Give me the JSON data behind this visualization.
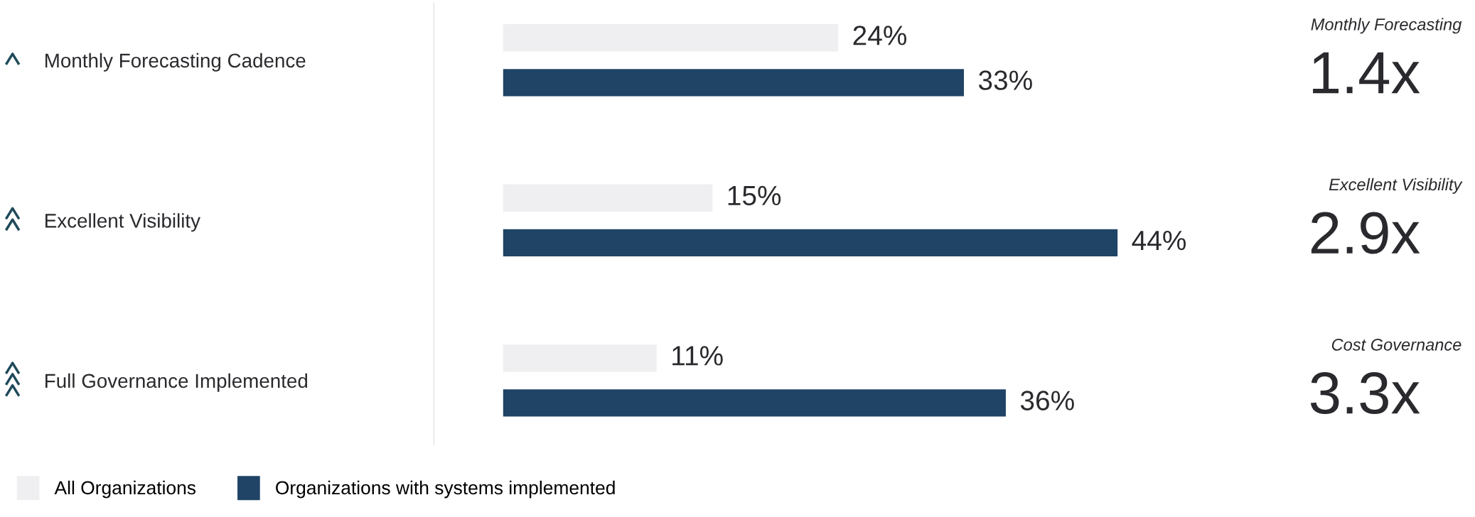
{
  "chart_data": {
    "type": "bar",
    "orientation": "horizontal",
    "relative": false,
    "categories": [
      "Monthly Forecasting Cadence",
      "Excellent Visibility",
      "Full Governance Implemented"
    ],
    "series": [
      {
        "name": "All Organizations",
        "color": "#efeef0",
        "values": [
          24,
          15,
          11
        ],
        "value_labels": [
          "24%",
          "15%",
          "11%"
        ]
      },
      {
        "name": "Organizations with systems implemented",
        "color": "#1f4466",
        "values": [
          33,
          44,
          36
        ],
        "value_labels": [
          "33%",
          "44%",
          "36%"
        ]
      }
    ],
    "annotations": [
      "Monthly Forecasting",
      "1.4x",
      "Excellent Visibility",
      "2.9x",
      "Cost Governance",
      "3.3x"
    ],
    "legend": "bottom left",
    "grid": false
  }
}
